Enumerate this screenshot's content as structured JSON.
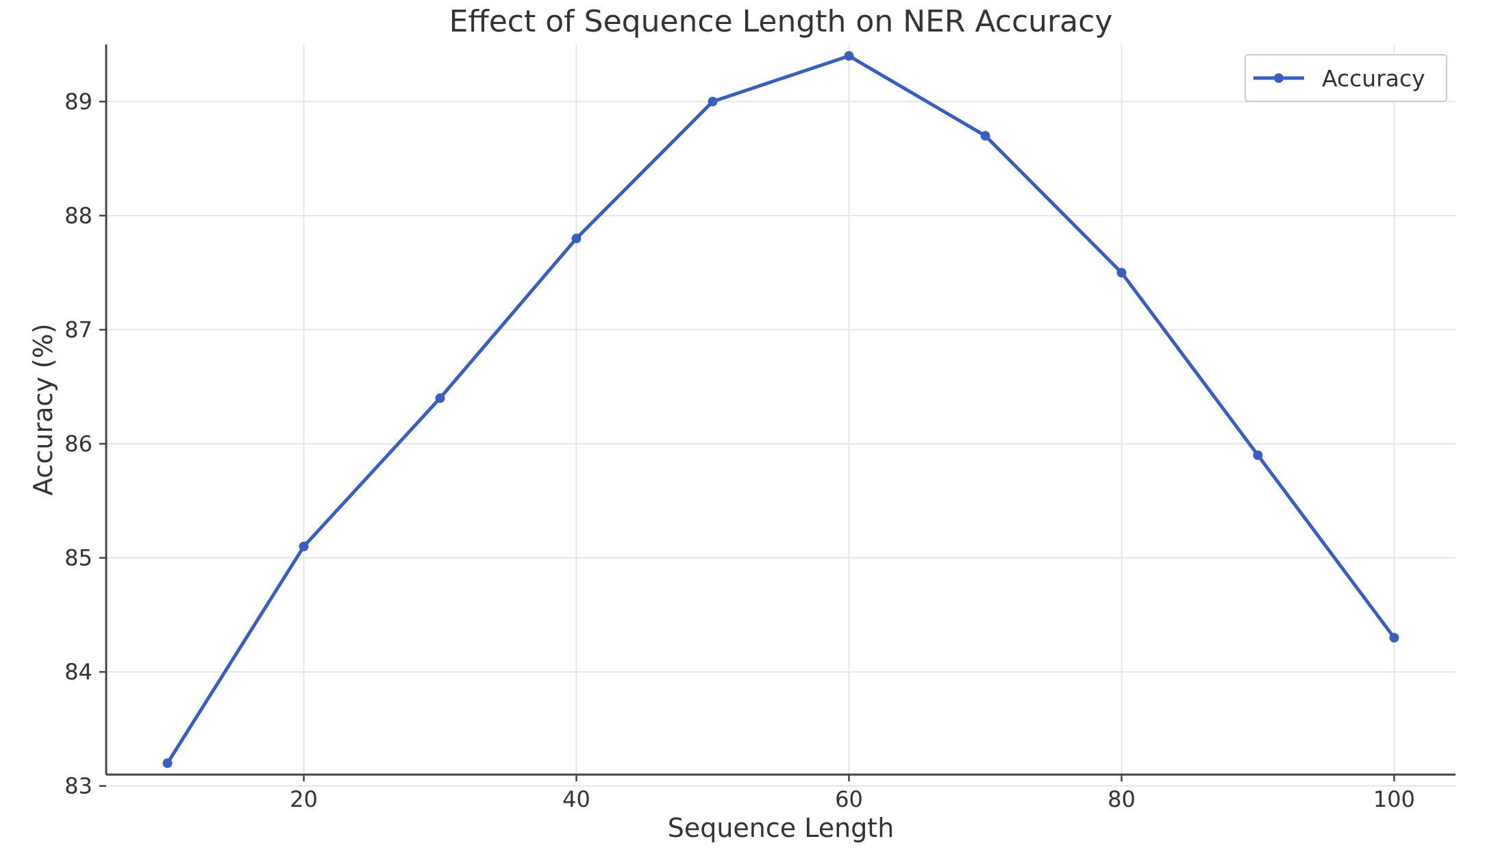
{
  "chart_data": {
    "type": "line",
    "title": "Effect of Sequence Length on NER Accuracy",
    "xlabel": "Sequence Length",
    "ylabel": "Accuracy (%)",
    "x": [
      10,
      20,
      30,
      40,
      50,
      60,
      70,
      80,
      90,
      100
    ],
    "xlim": [
      5.5,
      104.5
    ],
    "ylim": [
      83.1,
      89.5
    ],
    "xticks": [
      20,
      40,
      60,
      80,
      100
    ],
    "yticks": [
      83,
      84,
      85,
      86,
      87,
      88,
      89
    ],
    "grid": true,
    "legend_position": "top-right",
    "series": [
      {
        "name": "Accuracy",
        "color": "#3a5dbf",
        "marker": "circle",
        "values": [
          83.2,
          85.1,
          86.4,
          87.8,
          89.0,
          89.4,
          88.7,
          87.5,
          85.9,
          84.3
        ]
      }
    ]
  }
}
